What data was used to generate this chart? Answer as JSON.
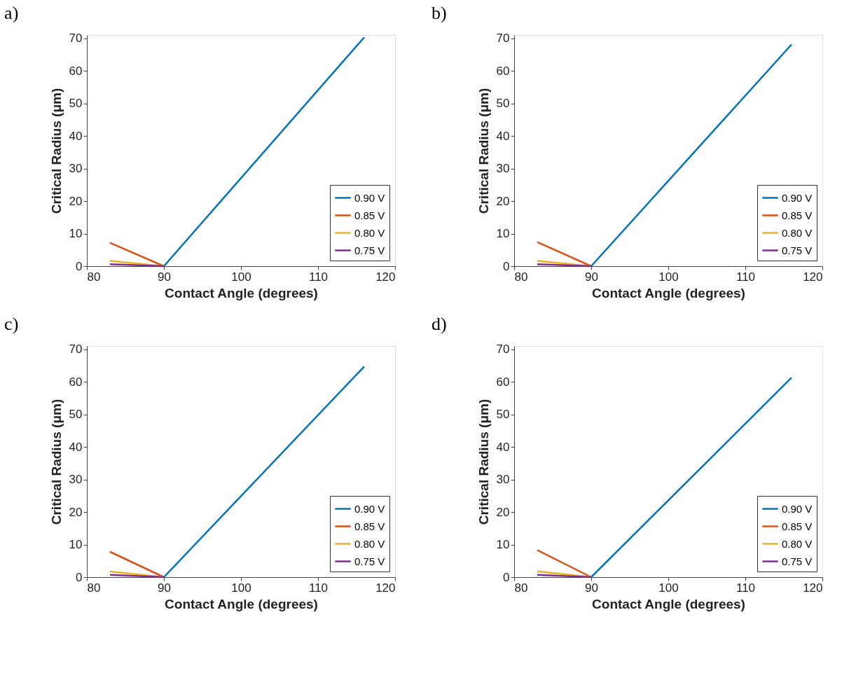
{
  "chart_data": [
    {
      "type": "line",
      "title": "a)",
      "xlabel": "Contact Angle (degrees)",
      "ylabel": "Critical Radius (μm)",
      "xlim": [
        80,
        120
      ],
      "xticks": [
        80,
        90,
        100,
        110,
        120
      ],
      "ylim": [
        0,
        71
      ],
      "yticks": [
        0,
        10,
        20,
        30,
        40,
        50,
        60,
        70
      ],
      "legend": "bottom right",
      "grid": false,
      "series": [
        {
          "name": "0.90 V",
          "color": "#0072bd",
          "x": [
            90,
            116
          ],
          "values": [
            0,
            70.3
          ]
        },
        {
          "name": "0.85 V",
          "color": "#d95319",
          "x": [
            83,
            90
          ],
          "values": [
            7.2,
            0
          ]
        },
        {
          "name": "0.80 V",
          "color": "#edb120",
          "x": [
            83,
            90
          ],
          "values": [
            1.6,
            0
          ]
        },
        {
          "name": "0.75 V",
          "color": "#7e2f8e",
          "x": [
            83,
            90
          ],
          "values": [
            0.6,
            0
          ]
        }
      ]
    },
    {
      "type": "line",
      "title": "b)",
      "xlabel": "Contact Angle (degrees)",
      "ylabel": "Critical Radius (μm)",
      "xlim": [
        80,
        120
      ],
      "xticks": [
        80,
        90,
        100,
        110,
        120
      ],
      "ylim": [
        0,
        71
      ],
      "yticks": [
        0,
        10,
        20,
        30,
        40,
        50,
        60,
        70
      ],
      "legend": "bottom right",
      "grid": false,
      "series": [
        {
          "name": "0.90 V",
          "color": "#0072bd",
          "x": [
            90,
            116
          ],
          "values": [
            0,
            68.1
          ]
        },
        {
          "name": "0.85 V",
          "color": "#d95319",
          "x": [
            83,
            90
          ],
          "values": [
            7.4,
            0
          ]
        },
        {
          "name": "0.80 V",
          "color": "#edb120",
          "x": [
            83,
            90
          ],
          "values": [
            1.6,
            0
          ]
        },
        {
          "name": "0.75 V",
          "color": "#7e2f8e",
          "x": [
            83,
            90
          ],
          "values": [
            0.6,
            0
          ]
        }
      ]
    },
    {
      "type": "line",
      "title": "c)",
      "xlabel": "Contact Angle (degrees)",
      "ylabel": "Critical Radius (μm)",
      "xlim": [
        80,
        120
      ],
      "xticks": [
        80,
        90,
        100,
        110,
        120
      ],
      "ylim": [
        0,
        71
      ],
      "yticks": [
        0,
        10,
        20,
        30,
        40,
        50,
        60,
        70
      ],
      "legend": "bottom right",
      "grid": false,
      "series": [
        {
          "name": "0.90 V",
          "color": "#0072bd",
          "x": [
            90,
            116
          ],
          "values": [
            0,
            64.7
          ]
        },
        {
          "name": "0.85 V",
          "color": "#d95319",
          "x": [
            83,
            90
          ],
          "values": [
            7.8,
            0
          ]
        },
        {
          "name": "0.80 V",
          "color": "#edb120",
          "x": [
            83,
            90
          ],
          "values": [
            1.7,
            0
          ]
        },
        {
          "name": "0.75 V",
          "color": "#7e2f8e",
          "x": [
            83,
            90
          ],
          "values": [
            0.7,
            0
          ]
        }
      ]
    },
    {
      "type": "line",
      "title": "d)",
      "xlabel": "Contact Angle (degrees)",
      "ylabel": "Critical Radius (μm)",
      "xlim": [
        80,
        120
      ],
      "xticks": [
        80,
        90,
        100,
        110,
        120
      ],
      "ylim": [
        0,
        71
      ],
      "yticks": [
        0,
        10,
        20,
        30,
        40,
        50,
        60,
        70
      ],
      "legend": "bottom right",
      "grid": false,
      "series": [
        {
          "name": "0.90 V",
          "color": "#0072bd",
          "x": [
            90,
            116
          ],
          "values": [
            0,
            61.3
          ]
        },
        {
          "name": "0.85 V",
          "color": "#d95319",
          "x": [
            83,
            90
          ],
          "values": [
            8.3,
            0
          ]
        },
        {
          "name": "0.80 V",
          "color": "#edb120",
          "x": [
            83,
            90
          ],
          "values": [
            1.8,
            0
          ]
        },
        {
          "name": "0.75 V",
          "color": "#7e2f8e",
          "x": [
            83,
            90
          ],
          "values": [
            0.7,
            0
          ]
        }
      ]
    }
  ]
}
